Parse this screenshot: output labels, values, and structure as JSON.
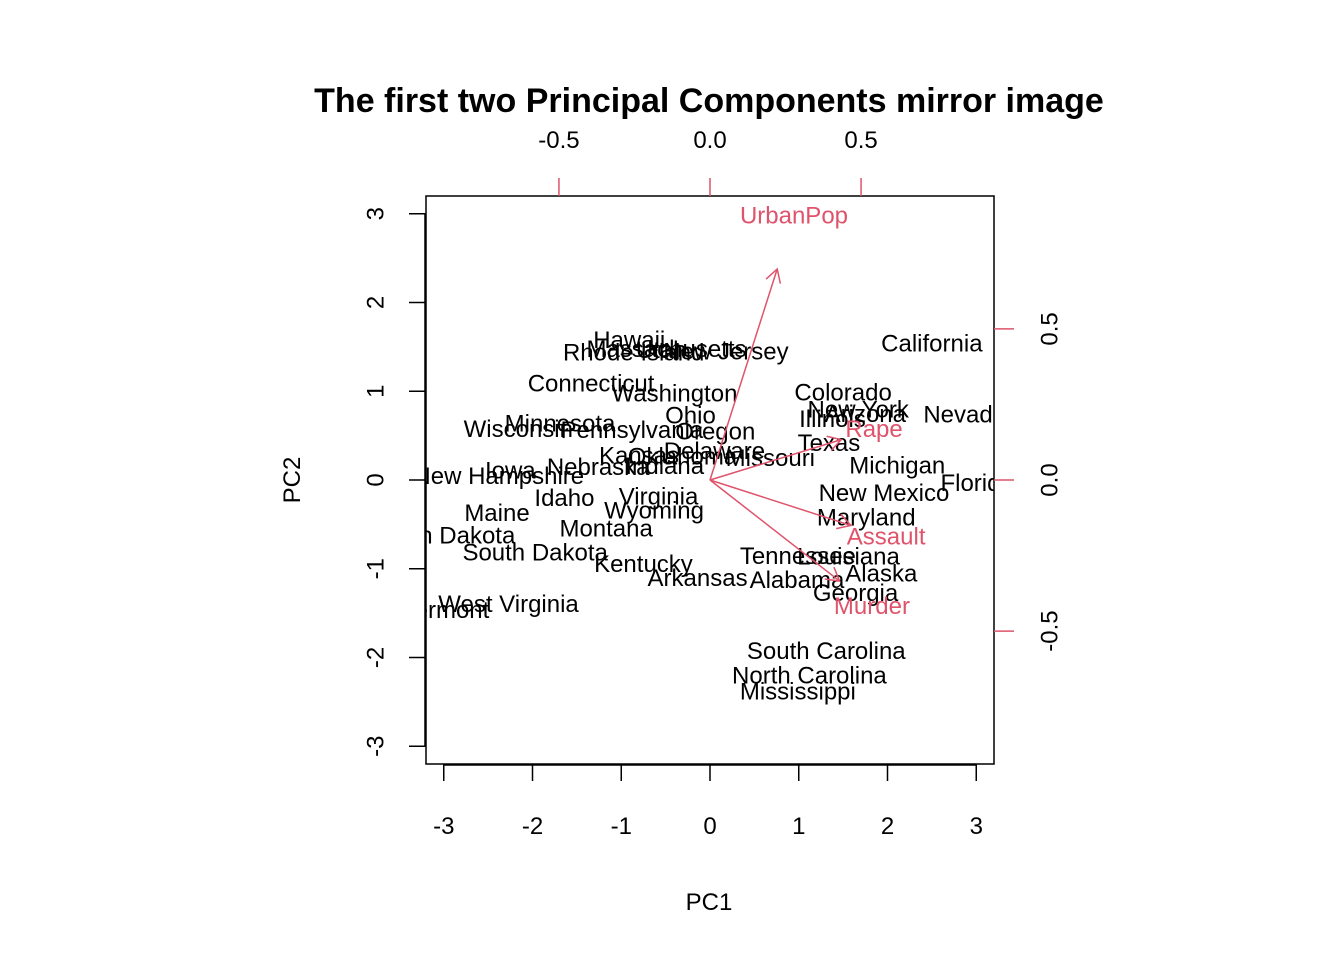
{
  "chart_data": {
    "type": "scatter",
    "subtype": "biplot",
    "title": "The first two Principal Components mirror image",
    "xlabel": "PC1",
    "ylabel": "PC2",
    "xlim": [
      -3.2,
      3.2
    ],
    "ylim": [
      -3.2,
      3.2
    ],
    "x_ticks": [
      -3,
      -2,
      -1,
      0,
      1,
      2,
      3
    ],
    "y_ticks": [
      -3,
      -2,
      -1,
      0,
      1,
      2,
      3
    ],
    "x_tick_labels": [
      "-3",
      "-2",
      "-1",
      "0",
      "1",
      "2",
      "3"
    ],
    "y_tick_labels": [
      "-3",
      "-2",
      "-1",
      "0",
      "1",
      "2",
      "3"
    ],
    "secondary_xlim": [
      -0.94,
      0.94
    ],
    "secondary_ylim": [
      -0.94,
      0.94
    ],
    "secondary_x_ticks": [
      -0.5,
      0.0,
      0.5
    ],
    "secondary_y_ticks": [
      -0.5,
      0.0,
      0.5
    ],
    "secondary_x_tick_labels": [
      "-0.5",
      "0.0",
      "0.5"
    ],
    "secondary_y_tick_labels": [
      "-0.5",
      "0.0",
      "0.5"
    ],
    "loading_color": "#DF536B",
    "point_color": "#000000",
    "grid": false,
    "points": [
      {
        "label": "Alabama",
        "x": 0.98,
        "y": -1.13
      },
      {
        "label": "Alaska",
        "x": 1.93,
        "y": -1.06
      },
      {
        "label": "Arizona",
        "x": 1.75,
        "y": 0.74
      },
      {
        "label": "Arkansas",
        "x": -0.14,
        "y": -1.11
      },
      {
        "label": "California",
        "x": 2.5,
        "y": 1.53
      },
      {
        "label": "Colorado",
        "x": 1.5,
        "y": 0.98
      },
      {
        "label": "Connecticut",
        "x": -1.34,
        "y": 1.08
      },
      {
        "label": "Delaware",
        "x": 0.05,
        "y": 0.32
      },
      {
        "label": "Florida",
        "x": 3.01,
        "y": -0.04
      },
      {
        "label": "Georgia",
        "x": 1.64,
        "y": -1.28
      },
      {
        "label": "Hawaii",
        "x": -0.91,
        "y": 1.57
      },
      {
        "label": "Idaho",
        "x": -1.64,
        "y": -0.21
      },
      {
        "label": "Illinois",
        "x": 1.38,
        "y": 0.68
      },
      {
        "label": "Indiana",
        "x": -0.51,
        "y": 0.15
      },
      {
        "label": "Iowa",
        "x": -2.25,
        "y": 0.1
      },
      {
        "label": "Kansas",
        "x": -0.8,
        "y": 0.27
      },
      {
        "label": "Kentucky",
        "x": -0.75,
        "y": -0.95
      },
      {
        "label": "Louisiana",
        "x": 1.56,
        "y": -0.87
      },
      {
        "label": "Maine",
        "x": -2.4,
        "y": -0.38
      },
      {
        "label": "Maryland",
        "x": 1.76,
        "y": -0.43
      },
      {
        "label": "Massachusetts",
        "x": -0.49,
        "y": 1.47
      },
      {
        "label": "Michigan",
        "x": 2.11,
        "y": 0.16
      },
      {
        "label": "Minnesota",
        "x": -1.69,
        "y": 0.63
      },
      {
        "label": "Mississippi",
        "x": 0.99,
        "y": -2.39
      },
      {
        "label": "Missouri",
        "x": 0.68,
        "y": 0.24
      },
      {
        "label": "Montana",
        "x": -1.17,
        "y": -0.55
      },
      {
        "label": "Nebraska",
        "x": -1.26,
        "y": 0.14
      },
      {
        "label": "Nevada",
        "x": 2.87,
        "y": 0.73
      },
      {
        "label": "New Hampshire",
        "x": -2.38,
        "y": 0.04
      },
      {
        "label": "New Jersey",
        "x": 0.18,
        "y": 1.44
      },
      {
        "label": "New Mexico",
        "x": 1.96,
        "y": -0.15
      },
      {
        "label": "New York",
        "x": 1.67,
        "y": 0.79
      },
      {
        "label": "North Carolina",
        "x": 1.12,
        "y": -2.21
      },
      {
        "label": "North Dakota",
        "x": -2.99,
        "y": -0.63
      },
      {
        "label": "Ohio",
        "x": -0.22,
        "y": 0.72
      },
      {
        "label": "Oklahoma",
        "x": -0.31,
        "y": 0.26
      },
      {
        "label": "Oregon",
        "x": 0.06,
        "y": 0.54
      },
      {
        "label": "Pennsylvania",
        "x": -0.88,
        "y": 0.56
      },
      {
        "label": "Rhode Island",
        "x": -0.86,
        "y": 1.43
      },
      {
        "label": "South Carolina",
        "x": 1.31,
        "y": -1.93
      },
      {
        "label": "South Dakota",
        "x": -1.97,
        "y": -0.82
      },
      {
        "label": "Tennessee",
        "x": 0.99,
        "y": -0.86
      },
      {
        "label": "Texas",
        "x": 1.34,
        "y": 0.41
      },
      {
        "label": "Utah",
        "x": -0.55,
        "y": 1.46
      },
      {
        "label": "Vermont",
        "x": -2.99,
        "y": -1.47
      },
      {
        "label": "Virginia",
        "x": -0.58,
        "y": -0.19
      },
      {
        "label": "Washington",
        "x": -0.4,
        "y": 0.97
      },
      {
        "label": "West Virginia",
        "x": -2.27,
        "y": -1.4
      },
      {
        "label": "Wisconsin",
        "x": -2.16,
        "y": 0.57
      },
      {
        "label": "Wyoming",
        "x": -0.63,
        "y": -0.35
      }
    ],
    "loadings": [
      {
        "label": "Murder",
        "x": 0.536,
        "y": -0.418
      },
      {
        "label": "Assault",
        "x": 0.583,
        "y": -0.188
      },
      {
        "label": "UrbanPop",
        "x": 0.278,
        "y": 0.873
      },
      {
        "label": "Rape",
        "x": 0.543,
        "y": 0.167
      }
    ]
  }
}
